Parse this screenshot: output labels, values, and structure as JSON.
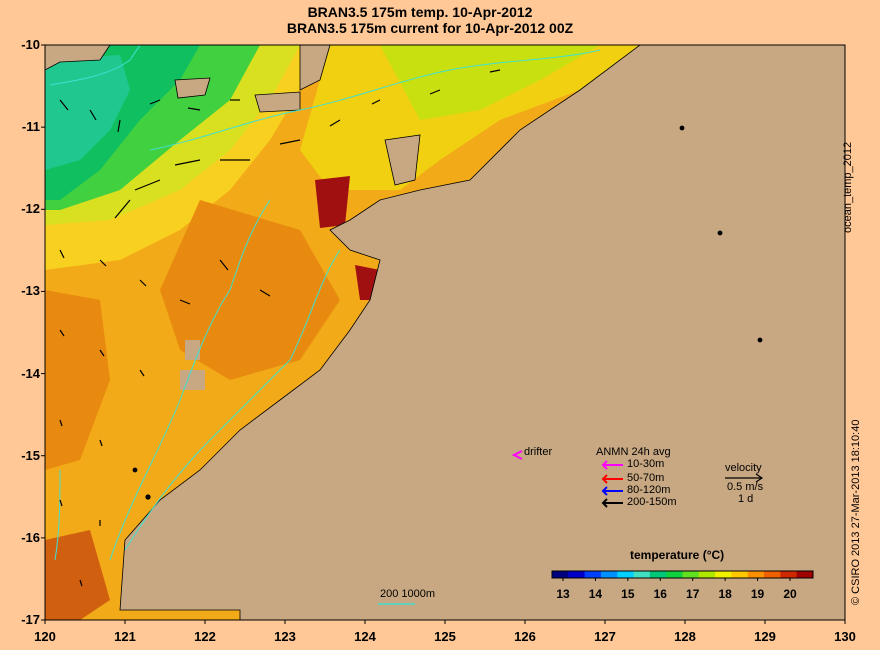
{
  "title_line1": "BRAN3.5 175m temp. 10-Apr-2012",
  "title_line2": "BRAN3.5 175m current for 10-Apr-2012 00Z",
  "y_ticks": [
    "-10",
    "-11",
    "-12",
    "-13",
    "-14",
    "-15",
    "-16",
    "-17"
  ],
  "x_ticks": [
    "120",
    "121",
    "122",
    "123",
    "124",
    "125",
    "126",
    "127",
    "128",
    "129",
    "130"
  ],
  "side_label_top": "ocean_temp_2012",
  "side_label_bottom": "© CSIRO 2013   27-Mar-2013 18:10:40",
  "drifter_label": "drifter",
  "legend": {
    "title": "ANMN 24h avg",
    "items": [
      {
        "label": "10-30m",
        "color": "#ff00ff"
      },
      {
        "label": "50-70m",
        "color": "#ff0000"
      },
      {
        "label": "80-120m",
        "color": "#0000ff"
      },
      {
        "label": "200-150m",
        "color": "#000000"
      }
    ]
  },
  "velocity": {
    "title": "velocity",
    "speed": "0.5 m/s",
    "duration": "1 d"
  },
  "bathy_legend": {
    "label": "200  1000m",
    "color": "#40e0d0"
  },
  "colorbar": {
    "title": "temperature (°C)",
    "ticks": [
      "13",
      "14",
      "15",
      "16",
      "17",
      "18",
      "19",
      "20"
    ],
    "colors": [
      "#000080",
      "#0000c8",
      "#0040ff",
      "#0090ff",
      "#00d0ff",
      "#40e0c0",
      "#00c878",
      "#10d040",
      "#60e020",
      "#b0e800",
      "#f0f000",
      "#ffc800",
      "#ff9000",
      "#f06000",
      "#d02800",
      "#a00000"
    ]
  },
  "colors": {
    "land": "#c8a882",
    "background": "#ffc896",
    "coast": "#000000"
  }
}
